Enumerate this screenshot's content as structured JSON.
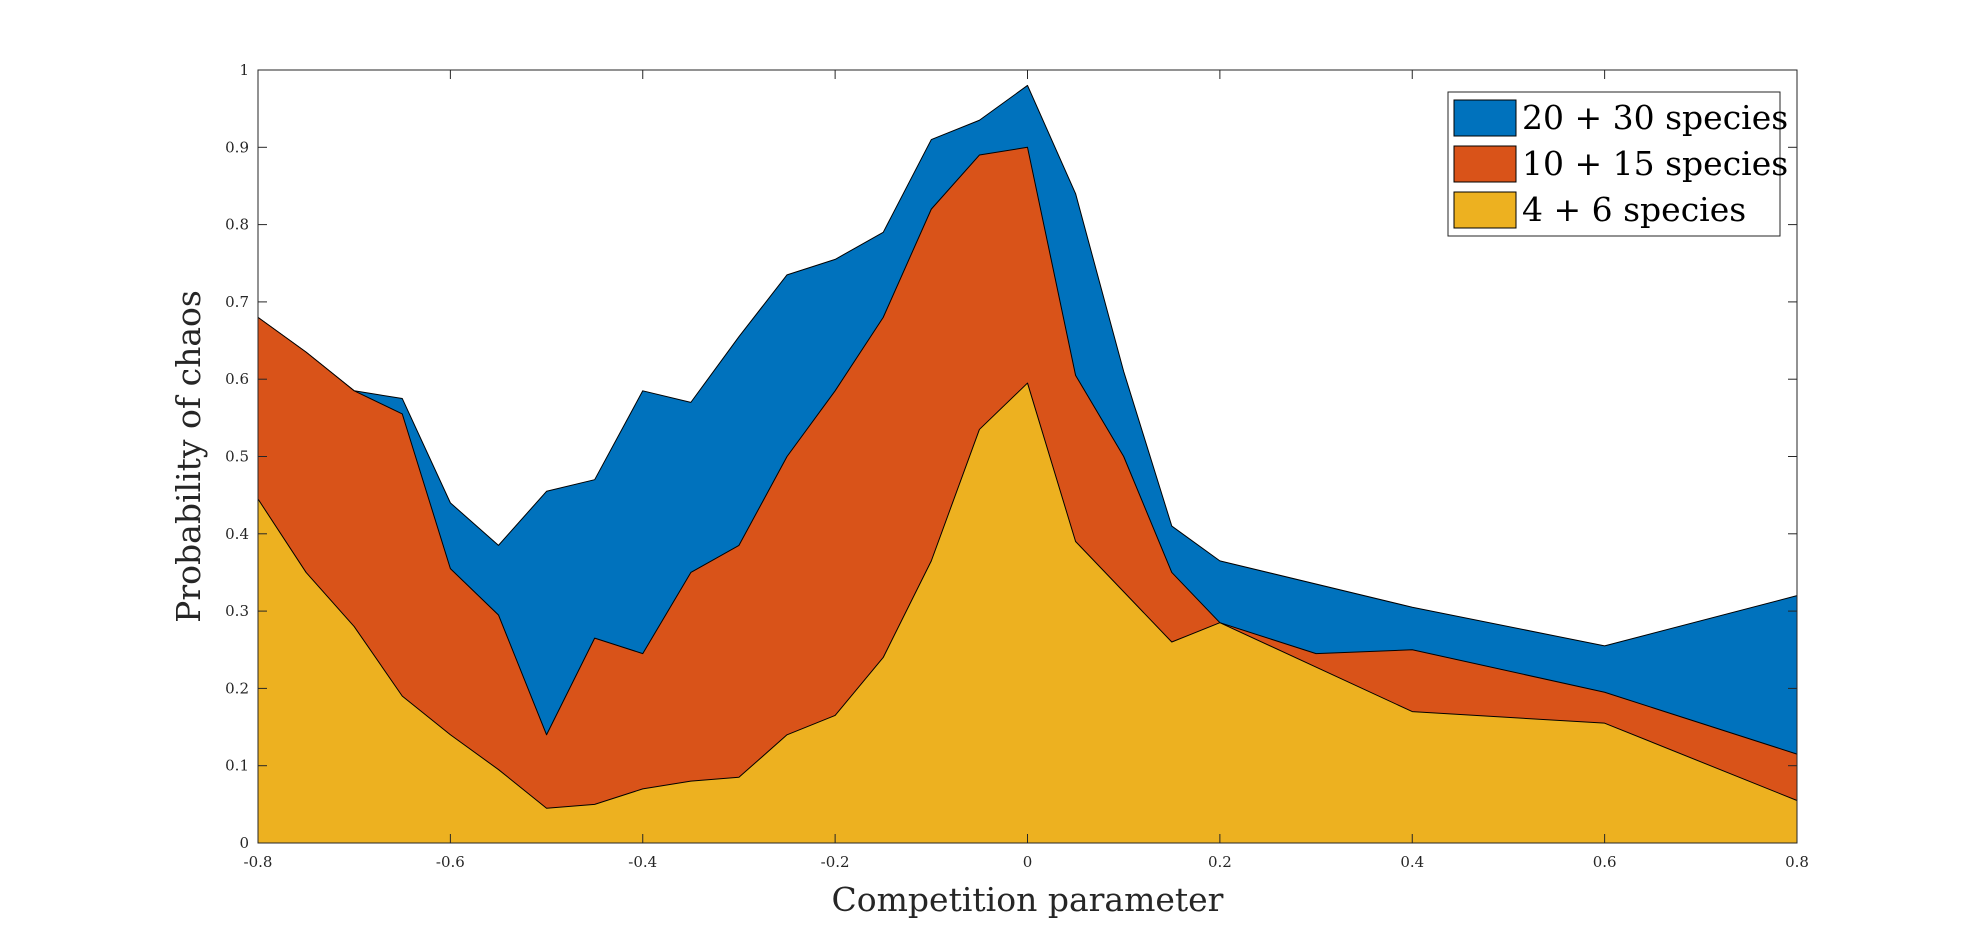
{
  "chart_data": {
    "type": "area",
    "stacked": false,
    "title": "",
    "xlabel": "Competition parameter",
    "ylabel": "Probability of chaos",
    "xlim": [
      -0.8,
      0.8
    ],
    "ylim": [
      0,
      1
    ],
    "x_ticks": [
      "-0.8",
      "-0.6",
      "-0.4",
      "-0.2",
      "0",
      "0.2",
      "0.4",
      "0.6",
      "0.8"
    ],
    "y_ticks": [
      "0",
      "0.1",
      "0.2",
      "0.3",
      "0.4",
      "0.5",
      "0.6",
      "0.7",
      "0.8",
      "0.9",
      "1"
    ],
    "grid": false,
    "legend_position": "top-right",
    "series": [
      {
        "name": "20 + 30 species",
        "color": "#0072BD",
        "x": [
          -0.8,
          -0.75,
          -0.7,
          -0.65,
          -0.6,
          -0.55,
          -0.5,
          -0.45,
          -0.4,
          -0.35,
          -0.3,
          -0.25,
          -0.2,
          -0.15,
          -0.1,
          -0.05,
          0,
          0.05,
          0.1,
          0.15,
          0.2,
          0.4,
          0.6,
          0.8
        ],
        "values": [
          0.68,
          0.635,
          0.585,
          0.575,
          0.44,
          0.385,
          0.455,
          0.47,
          0.585,
          0.57,
          0.655,
          0.735,
          0.755,
          0.79,
          0.91,
          0.935,
          0.98,
          0.84,
          0.61,
          0.41,
          0.365,
          0.305,
          0.255,
          0.32
        ]
      },
      {
        "name": "10 + 15 species",
        "color": "#D95319",
        "x": [
          -0.8,
          -0.75,
          -0.7,
          -0.65,
          -0.6,
          -0.55,
          -0.5,
          -0.45,
          -0.4,
          -0.35,
          -0.3,
          -0.25,
          -0.2,
          -0.15,
          -0.1,
          -0.05,
          0,
          0.05,
          0.1,
          0.15,
          0.2,
          0.3,
          0.4,
          0.6,
          0.8
        ],
        "values": [
          0.68,
          0.635,
          0.585,
          0.555,
          0.355,
          0.295,
          0.14,
          0.265,
          0.245,
          0.35,
          0.385,
          0.5,
          0.585,
          0.68,
          0.82,
          0.89,
          0.9,
          0.605,
          0.5,
          0.35,
          0.285,
          0.245,
          0.25,
          0.195,
          0.115
        ]
      },
      {
        "name": "4 + 6 species",
        "color": "#EDB120",
        "x": [
          -0.8,
          -0.75,
          -0.7,
          -0.65,
          -0.6,
          -0.55,
          -0.5,
          -0.45,
          -0.4,
          -0.35,
          -0.3,
          -0.25,
          -0.2,
          -0.15,
          -0.1,
          -0.05,
          0,
          0.05,
          0.1,
          0.15,
          0.2,
          0.4,
          0.6,
          0.8
        ],
        "values": [
          0.445,
          0.35,
          0.28,
          0.19,
          0.14,
          0.095,
          0.045,
          0.05,
          0.07,
          0.08,
          0.085,
          0.14,
          0.165,
          0.24,
          0.365,
          0.535,
          0.595,
          0.39,
          0.325,
          0.26,
          0.285,
          0.17,
          0.155,
          0.055
        ]
      }
    ]
  }
}
